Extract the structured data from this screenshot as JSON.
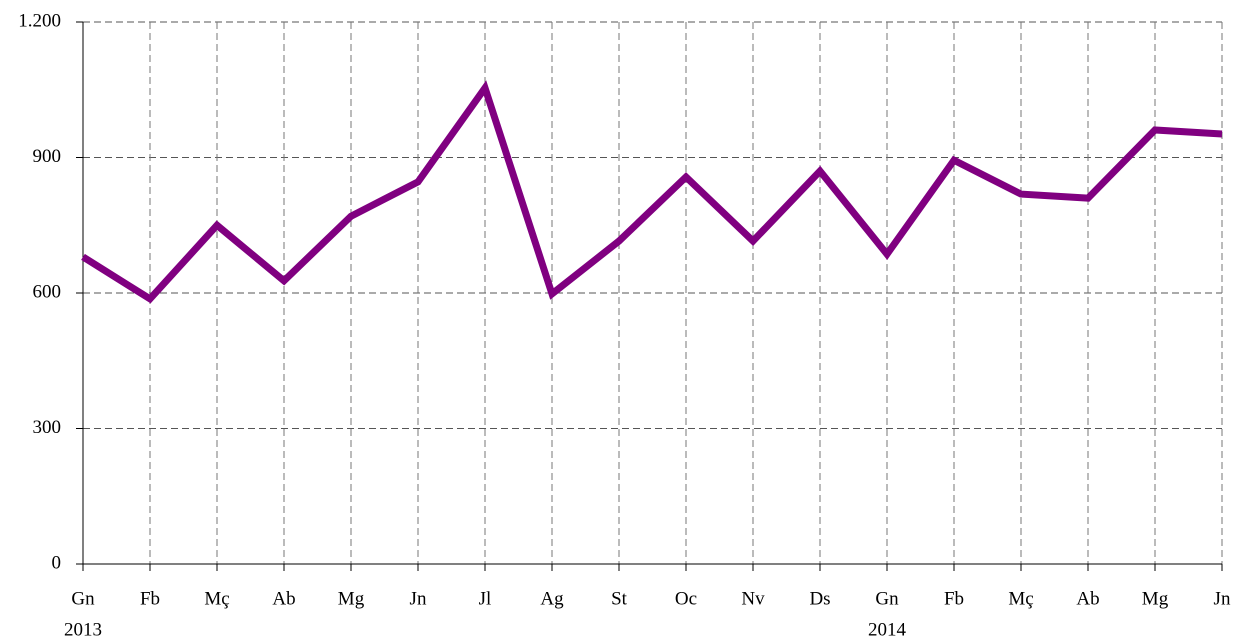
{
  "chart_data": {
    "type": "line",
    "categories": [
      "Gn",
      "Fb",
      "Mç",
      "Ab",
      "Mg",
      "Jn",
      "Jl",
      "Ag",
      "St",
      "Oc",
      "Nv",
      "Ds",
      "Gn",
      "Fb",
      "Mç",
      "Ab",
      "Mg",
      "Jn"
    ],
    "x_groups": [
      {
        "label": "2013",
        "start": 0
      },
      {
        "label": "2014",
        "start": 12
      }
    ],
    "series": [
      {
        "color": "#800080",
        "values": [
          680,
          587,
          750,
          627,
          770,
          846,
          1054,
          598,
          715,
          857,
          715,
          870,
          686,
          894,
          819,
          810,
          961,
          952
        ]
      }
    ],
    "ylim": [
      0,
      1200
    ],
    "yticks": [
      0,
      300,
      600,
      900,
      {
        "value": 1200,
        "label": "1.200"
      }
    ],
    "grid": true
  }
}
